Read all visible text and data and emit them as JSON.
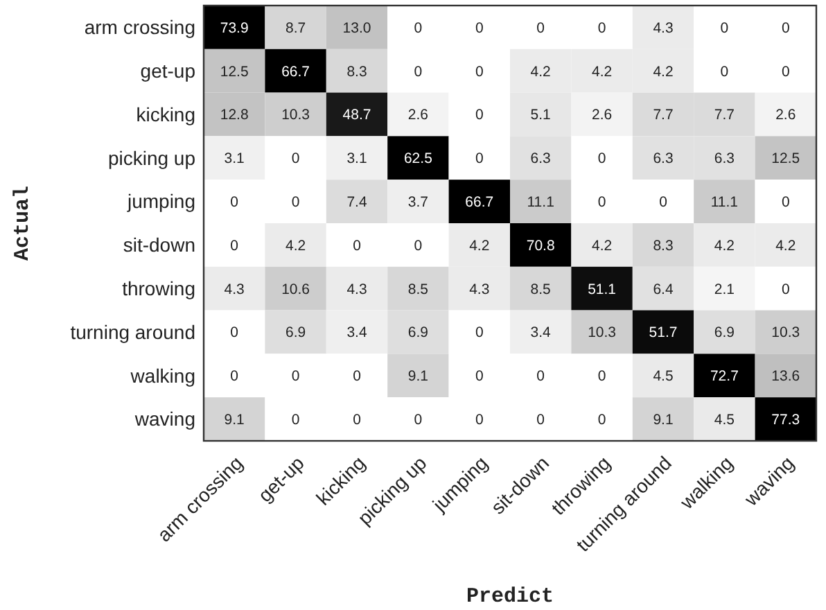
{
  "chart_data": {
    "type": "heatmap",
    "xlabel": "Predict",
    "ylabel": "Actual",
    "categories": [
      "arm crossing",
      "get-up",
      "kicking",
      "picking up",
      "jumping",
      "sit-down",
      "throwing",
      "turning around",
      "walking",
      "waving"
    ],
    "y_categories": [
      "arm crossing",
      "get-up",
      "kicking",
      "picking up",
      "jumping",
      "sit-down",
      "throwing",
      "turning around",
      "walking",
      "waving"
    ],
    "cells": [
      [
        73.9,
        8.7,
        13.0,
        0,
        0,
        0,
        0,
        4.3,
        0,
        0
      ],
      [
        12.5,
        66.7,
        8.3,
        0,
        0,
        4.2,
        4.2,
        4.2,
        0,
        0
      ],
      [
        12.8,
        10.3,
        48.7,
        2.6,
        0,
        5.1,
        2.6,
        7.7,
        7.7,
        2.6
      ],
      [
        3.1,
        0,
        3.1,
        62.5,
        0,
        6.3,
        0,
        6.3,
        6.3,
        12.5
      ],
      [
        0,
        0,
        7.4,
        3.7,
        66.7,
        11.1,
        0,
        0,
        11.1,
        0
      ],
      [
        0,
        4.2,
        0,
        0,
        4.2,
        70.8,
        4.2,
        8.3,
        4.2,
        4.2
      ],
      [
        4.3,
        10.6,
        4.3,
        8.5,
        4.3,
        8.5,
        51.1,
        6.4,
        2.1,
        0
      ],
      [
        0,
        6.9,
        3.4,
        6.9,
        0,
        3.4,
        10.3,
        51.7,
        6.9,
        10.3
      ],
      [
        0,
        0,
        0,
        9.1,
        0,
        0,
        0,
        4.5,
        72.7,
        13.6
      ],
      [
        9.1,
        0,
        0,
        0,
        0,
        0,
        0,
        9.1,
        4.5,
        77.3
      ]
    ],
    "cell_labels": [
      [
        "73.9",
        "8.7",
        "13.0",
        "0",
        "0",
        "0",
        "0",
        "4.3",
        "0",
        "0"
      ],
      [
        "12.5",
        "66.7",
        "8.3",
        "0",
        "0",
        "4.2",
        "4.2",
        "4.2",
        "0",
        "0"
      ],
      [
        "12.8",
        "10.3",
        "48.7",
        "2.6",
        "0",
        "5.1",
        "2.6",
        "7.7",
        "7.7",
        "2.6"
      ],
      [
        "3.1",
        "0",
        "3.1",
        "62.5",
        "0",
        "6.3",
        "0",
        "6.3",
        "6.3",
        "12.5"
      ],
      [
        "0",
        "0",
        "7.4",
        "3.7",
        "66.7",
        "11.1",
        "0",
        "0",
        "11.1",
        "0"
      ],
      [
        "0",
        "4.2",
        "0",
        "0",
        "4.2",
        "70.8",
        "4.2",
        "8.3",
        "4.2",
        "4.2"
      ],
      [
        "4.3",
        "10.6",
        "4.3",
        "8.5",
        "4.3",
        "8.5",
        "51.1",
        "6.4",
        "2.1",
        "0"
      ],
      [
        "0",
        "6.9",
        "3.4",
        "6.9",
        "0",
        "3.4",
        "10.3",
        "51.7",
        "6.9",
        "10.3"
      ],
      [
        "0",
        "0",
        "0",
        "9.1",
        "0",
        "0",
        "0",
        "4.5",
        "72.7",
        "13.6"
      ],
      [
        "9.1",
        "0",
        "0",
        "0",
        "0",
        "0",
        "0",
        "9.1",
        "4.5",
        "77.3"
      ]
    ]
  }
}
